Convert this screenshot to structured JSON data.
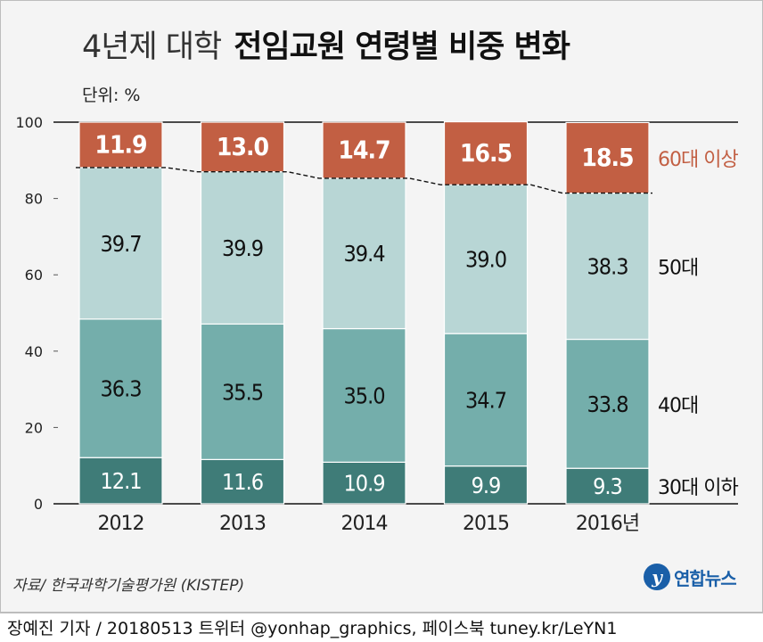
{
  "header": {
    "title_light": "4년제 대학",
    "title_bold": "전임교원 연령별 비중 변화",
    "unit": "단위: %"
  },
  "footer": {
    "source": "자료/ 한국과학기술평가원 (KISTEP)",
    "logo_mark": "y",
    "logo_text": "연합뉴스",
    "credit": "장예진 기자 / 20180513 트위터 @yonhap_graphics, 페이스북 tuney.kr/LeYN1"
  },
  "colors": {
    "age30": "#3f7c78",
    "age40": "#74aeab",
    "age50": "#b8d6d5",
    "age60": "#c25f43",
    "age60_label": "#c25f43"
  },
  "chart_data": {
    "type": "bar",
    "stacked": true,
    "categories": [
      "2012",
      "2013",
      "2014",
      "2015",
      "2016년"
    ],
    "series": [
      {
        "name": "30대 이하",
        "values": [
          12.1,
          11.6,
          10.9,
          9.9,
          9.3
        ]
      },
      {
        "name": "40대",
        "values": [
          36.3,
          35.5,
          35.0,
          34.7,
          33.8
        ]
      },
      {
        "name": "50대",
        "values": [
          39.7,
          39.9,
          39.4,
          39.0,
          38.3
        ]
      },
      {
        "name": "60대 이상",
        "values": [
          11.9,
          13.0,
          14.7,
          16.5,
          18.5
        ]
      }
    ],
    "ylim": [
      0,
      100
    ],
    "yticks": [
      0,
      20,
      40,
      60,
      80,
      100
    ],
    "legend": "right, labels beside 2016 bar"
  }
}
